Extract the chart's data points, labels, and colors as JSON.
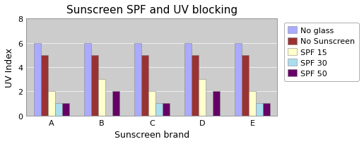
{
  "title": "Sunscreen SPF and UV blocking",
  "xlabel": "Sunscreen brand",
  "ylabel": "UV Index",
  "categories": [
    "A",
    "B",
    "C",
    "D",
    "E"
  ],
  "series": {
    "No glass": [
      6,
      6,
      6,
      6,
      6
    ],
    "No Sunscreen": [
      5,
      5,
      5,
      5,
      5
    ],
    "SPF 15": [
      2,
      3,
      2,
      3,
      2
    ],
    "SPF 30": [
      1,
      0,
      1,
      0,
      1
    ],
    "SPF 50": [
      1,
      2,
      1,
      2,
      1
    ]
  },
  "colors": {
    "No glass": "#aaaaff",
    "No Sunscreen": "#993333",
    "SPF 15": "#ffffcc",
    "SPF 30": "#aaddee",
    "SPF 50": "#660066"
  },
  "ylim": [
    0,
    8
  ],
  "yticks": [
    0,
    2,
    4,
    6,
    8
  ],
  "bar_width": 0.14,
  "plot_bg": "#cccccc",
  "fig_bg": "#ffffff",
  "title_fontsize": 11,
  "axis_label_fontsize": 9,
  "tick_fontsize": 8,
  "legend_fontsize": 8
}
